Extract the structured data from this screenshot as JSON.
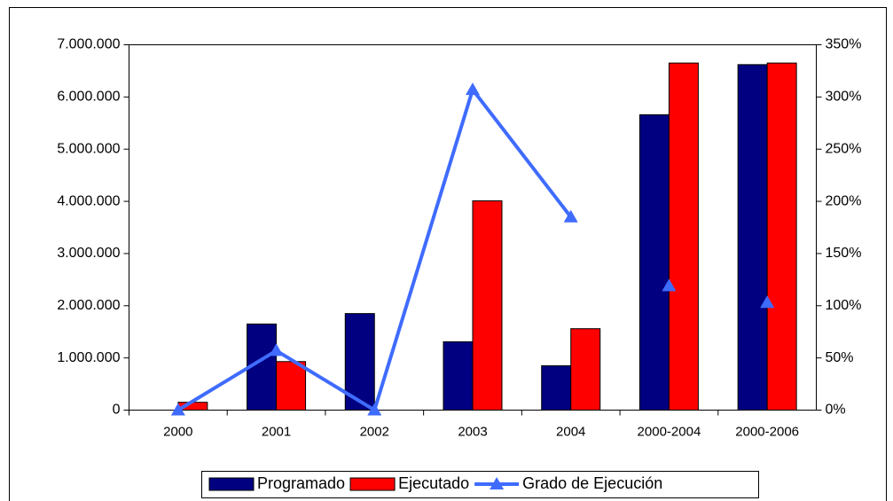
{
  "chart_data": {
    "type": "bar",
    "categories": [
      "2000",
      "2001",
      "2002",
      "2003",
      "2004",
      "2000-2004",
      "2000-2006"
    ],
    "series": [
      {
        "name": "Programado",
        "color": "#000080",
        "values": [
          0,
          1650000,
          1850000,
          1310000,
          850000,
          5660000,
          6620000
        ]
      },
      {
        "name": "Ejecutado",
        "color": "#ff0000",
        "values": [
          150000,
          930000,
          0,
          4010000,
          1560000,
          6650000,
          6650000
        ]
      },
      {
        "name": "Grado de Ejecución",
        "color": "#3f6bff",
        "axis": "y2",
        "type": "line",
        "values": [
          0,
          57,
          0,
          307,
          185,
          119,
          103
        ]
      }
    ],
    "ylim": [
      0,
      7000000
    ],
    "yticks": [
      0,
      {
        "value": 1000000,
        "label": "1.000.000"
      },
      {
        "value": 2000000,
        "label": "2.000.000"
      },
      {
        "value": 3000000,
        "label": "3.000.000"
      },
      {
        "value": 4000000,
        "label": "4.000.000"
      },
      {
        "value": 5000000,
        "label": "5.000.000"
      },
      {
        "value": 6000000,
        "label": "6.000.000"
      },
      {
        "value": 7000000,
        "label": "7.000.000"
      }
    ],
    "y2lim": [
      0,
      350
    ],
    "y2ticks": [
      {
        "value": 0,
        "label": "0%"
      },
      {
        "value": 50,
        "label": "50%"
      },
      {
        "value": 100,
        "label": "100%"
      },
      {
        "value": 150,
        "label": "150%"
      },
      {
        "value": 200,
        "label": "200%"
      },
      {
        "value": 250,
        "label": "250%"
      },
      {
        "value": 300,
        "label": "300%"
      },
      {
        "value": 350,
        "label": "350%"
      }
    ],
    "legend": "bottom",
    "grid": false
  }
}
